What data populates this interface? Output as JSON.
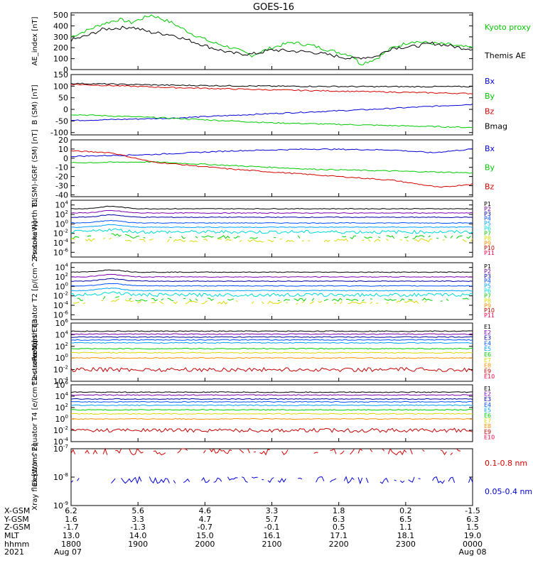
{
  "title": "GOES-16",
  "colors": {
    "black": "#000000",
    "green": "#00c800",
    "red": "#d40000",
    "blue": "#0000d8",
    "purple": "#7a00b0",
    "dark_blue": "#0000a0",
    "mid_blue": "#0050ff",
    "sky": "#00a0ff",
    "cyan": "#00d8d8",
    "lime": "#00d000",
    "yellow": "#d8d800",
    "orange": "#ff9000",
    "dark_red": "#c00000",
    "pink_red": "#ff0040"
  },
  "chart_data": [
    {
      "type": "line",
      "ylabel": "AE_index [nT]",
      "yticks": [
        "500",
        "400",
        "300",
        "200",
        "100",
        "0"
      ],
      "ylim": [
        0,
        520
      ],
      "series": [
        {
          "name": "Kyoto proxy AE",
          "color": "green",
          "points": [
            [
              0,
              300
            ],
            [
              0.04,
              360
            ],
            [
              0.08,
              420
            ],
            [
              0.12,
              460
            ],
            [
              0.15,
              430
            ],
            [
              0.2,
              500
            ],
            [
              0.25,
              430
            ],
            [
              0.3,
              330
            ],
            [
              0.35,
              250
            ],
            [
              0.4,
              200
            ],
            [
              0.45,
              130
            ],
            [
              0.5,
              200
            ],
            [
              0.55,
              250
            ],
            [
              0.6,
              220
            ],
            [
              0.65,
              170
            ],
            [
              0.7,
              130
            ],
            [
              0.72,
              50
            ],
            [
              0.76,
              100
            ],
            [
              0.8,
              200
            ],
            [
              0.85,
              260
            ],
            [
              0.9,
              240
            ],
            [
              0.94,
              230
            ],
            [
              0.97,
              210
            ],
            [
              1,
              200
            ]
          ]
        },
        {
          "name": "Themis AE",
          "color": "black",
          "points": [
            [
              0,
              270
            ],
            [
              0.04,
              310
            ],
            [
              0.08,
              370
            ],
            [
              0.12,
              380
            ],
            [
              0.15,
              390
            ],
            [
              0.2,
              340
            ],
            [
              0.25,
              320
            ],
            [
              0.3,
              260
            ],
            [
              0.35,
              200
            ],
            [
              0.4,
              150
            ],
            [
              0.45,
              140
            ],
            [
              0.5,
              180
            ],
            [
              0.55,
              170
            ],
            [
              0.6,
              160
            ],
            [
              0.65,
              130
            ],
            [
              0.7,
              100
            ],
            [
              0.72,
              110
            ],
            [
              0.76,
              120
            ],
            [
              0.8,
              200
            ],
            [
              0.85,
              210
            ],
            [
              0.9,
              240
            ],
            [
              0.94,
              220
            ],
            [
              0.97,
              200
            ],
            [
              1,
              190
            ]
          ]
        }
      ]
    },
    {
      "type": "line",
      "ylabel": "B (SM) [nT]",
      "yticks": [
        "150",
        "100",
        "50",
        "0",
        "-50",
        "-100"
      ],
      "ylim": [
        -110,
        150
      ],
      "series": [
        {
          "name": "Bx",
          "color": "blue",
          "points": [
            [
              0,
              -48
            ],
            [
              0.25,
              -38
            ],
            [
              0.5,
              -18
            ],
            [
              0.75,
              0
            ],
            [
              1,
              22
            ]
          ]
        },
        {
          "name": "By",
          "color": "green",
          "points": [
            [
              0,
              -22
            ],
            [
              0.25,
              -38
            ],
            [
              0.5,
              -58
            ],
            [
              0.75,
              -68
            ],
            [
              1,
              -78
            ]
          ]
        },
        {
          "name": "Bz",
          "color": "red",
          "points": [
            [
              0,
              108
            ],
            [
              0.25,
              94
            ],
            [
              0.5,
              84
            ],
            [
              0.75,
              76
            ],
            [
              1,
              68
            ]
          ]
        },
        {
          "name": "Bmag",
          "color": "black",
          "points": [
            [
              0,
              112
            ],
            [
              0.25,
              104
            ],
            [
              0.5,
              100
            ],
            [
              0.75,
              98
            ],
            [
              1,
              98
            ]
          ]
        }
      ]
    },
    {
      "type": "line",
      "ylabel": "B (SM)-IGRF (SM) [nT]",
      "yticks": [
        "20",
        "10",
        "0",
        "-10",
        "-20",
        "-30",
        "-40"
      ],
      "ylim": [
        -42,
        20
      ],
      "series": [
        {
          "name": "Bx",
          "color": "blue",
          "points": [
            [
              0,
              2
            ],
            [
              0.2,
              4
            ],
            [
              0.4,
              8
            ],
            [
              0.6,
              10
            ],
            [
              0.8,
              9
            ],
            [
              0.9,
              6
            ],
            [
              1,
              10
            ]
          ]
        },
        {
          "name": "By",
          "color": "green",
          "points": [
            [
              0,
              -5
            ],
            [
              0.2,
              -4
            ],
            [
              0.4,
              -8
            ],
            [
              0.6,
              -12
            ],
            [
              0.8,
              -14
            ],
            [
              1,
              -16
            ]
          ]
        },
        {
          "name": "Bz",
          "color": "red",
          "points": [
            [
              0,
              8
            ],
            [
              0.1,
              6
            ],
            [
              0.2,
              -4
            ],
            [
              0.3,
              -8
            ],
            [
              0.4,
              -12
            ],
            [
              0.6,
              -18
            ],
            [
              0.8,
              -24
            ],
            [
              0.92,
              -32
            ],
            [
              1,
              -28
            ]
          ]
        }
      ]
    },
    {
      "type": "line",
      "log": true,
      "ylabel": "Protons North T1",
      "yticks": [
        "10^4",
        "10^2",
        "10^0",
        "10^-2",
        "10^-4",
        "10^-6"
      ],
      "ylim_exp": [
        -7,
        5
      ],
      "series": [
        {
          "name": "P1",
          "color": "black",
          "level": 3.2
        },
        {
          "name": "P2",
          "color": "purple",
          "level": 2.3
        },
        {
          "name": "P3",
          "color": "dark_blue",
          "level": 1.4
        },
        {
          "name": "P4",
          "color": "mid_blue",
          "level": 0.2
        },
        {
          "name": "P5",
          "color": "sky",
          "level": -0.7
        },
        {
          "name": "P6",
          "color": "cyan",
          "level": -1.7
        },
        {
          "name": "P7",
          "color": "lime",
          "level": -2.8
        },
        {
          "name": "P8",
          "color": "yellow",
          "level": -3.5
        },
        {
          "name": "P9",
          "color": "orange",
          "level": null
        },
        {
          "name": "P10",
          "color": "dark_red",
          "level": null
        },
        {
          "name": "P11",
          "color": "pink_red",
          "level": null
        }
      ]
    },
    {
      "type": "line",
      "log": true,
      "ylabel": "Protons Equator T2 [p/(cm^2-s-sr-keV)]",
      "yticks": [
        "10^4",
        "10^2",
        "10^0",
        "10^-2",
        "10^-4",
        "10^-6"
      ],
      "ylim_exp": [
        -7,
        5
      ],
      "series": [
        {
          "name": "P1",
          "color": "black",
          "level": 3.0
        },
        {
          "name": "P2",
          "color": "purple",
          "level": 2.0
        },
        {
          "name": "P3",
          "color": "dark_blue",
          "level": 1.1
        },
        {
          "name": "P4",
          "color": "mid_blue",
          "level": 0.1
        },
        {
          "name": "P5",
          "color": "sky",
          "level": -0.9
        },
        {
          "name": "P6",
          "color": "cyan",
          "level": -1.8
        },
        {
          "name": "P7",
          "color": "lime",
          "level": -2.8
        },
        {
          "name": "P8",
          "color": "yellow",
          "level": -3.4
        },
        {
          "name": "P9",
          "color": "orange",
          "level": null
        },
        {
          "name": "P10",
          "color": "dark_red",
          "level": null
        },
        {
          "name": "P11",
          "color": "pink_red",
          "level": null
        }
      ]
    },
    {
      "type": "line",
      "log": true,
      "ylabel": "Electrons North T3",
      "yticks": [
        "10^6",
        "10^4",
        "10^2",
        "10^0",
        "10^-2",
        "10^-4"
      ],
      "ylim_exp": [
        -4,
        6
      ],
      "series": [
        {
          "name": "E1",
          "color": "black",
          "level": 4.6
        },
        {
          "name": "E2",
          "color": "purple",
          "level": 4.1
        },
        {
          "name": "E3",
          "color": "dark_blue",
          "level": 3.6
        },
        {
          "name": "E4",
          "color": "mid_blue",
          "level": 3.1
        },
        {
          "name": "E5",
          "color": "sky",
          "level": 2.6
        },
        {
          "name": "E6",
          "color": "lime",
          "level": 1.6
        },
        {
          "name": "E7",
          "color": "yellow",
          "level": 0.9
        },
        {
          "name": "E8",
          "color": "orange",
          "level": 0.0
        },
        {
          "name": "E9",
          "color": "dark_red",
          "level": -2.0
        },
        {
          "name": "E10",
          "color": "pink_red",
          "level": null
        }
      ]
    },
    {
      "type": "line",
      "log": true,
      "ylabel": "Electrons Equator T4 [e/(cm^2-s-sr-keV)]",
      "yticks": [
        "10^6",
        "10^4",
        "10^2",
        "10^0",
        "10^-2",
        "10^-4"
      ],
      "ylim_exp": [
        -4,
        6
      ],
      "series": [
        {
          "name": "E1",
          "color": "black",
          "level": 4.7
        },
        {
          "name": "E2",
          "color": "purple",
          "level": 4.2
        },
        {
          "name": "E3",
          "color": "dark_blue",
          "level": 3.5
        },
        {
          "name": "E4",
          "color": "mid_blue",
          "level": 3.0
        },
        {
          "name": "E5",
          "color": "sky",
          "level": 2.4
        },
        {
          "name": "E6",
          "color": "lime",
          "level": 1.6
        },
        {
          "name": "E7",
          "color": "yellow",
          "level": 0.9
        },
        {
          "name": "E8",
          "color": "orange",
          "level": 0.0
        },
        {
          "name": "E9",
          "color": "dark_red",
          "level": -2.0
        },
        {
          "name": "E10",
          "color": "pink_red",
          "level": null
        }
      ]
    },
    {
      "type": "line",
      "log": true,
      "ylabel": "Xray flux [W/m^2]",
      "yticks": [
        "10^-7",
        "10^-8",
        "10^-9"
      ],
      "ylim_exp": [
        -9,
        -7
      ],
      "series": [
        {
          "name": "0.1-0.8 nm",
          "color": "red",
          "level": -7.1
        },
        {
          "name": "0.05-0.4 nm",
          "color": "blue",
          "level": -8.1
        }
      ]
    }
  ],
  "ephemeris": {
    "row_labels": [
      "X-GSM",
      "Y-GSM",
      "Z-GSM",
      "MLT",
      "hhmm",
      "2021"
    ],
    "columns": [
      {
        "values": [
          "6.2",
          "1.6",
          "-1.7",
          "13.0",
          "1800",
          "Aug 07"
        ]
      },
      {
        "values": [
          "5.6",
          "3.3",
          "-1.3",
          "14.0",
          "1900",
          ""
        ]
      },
      {
        "values": [
          "4.6",
          "4.7",
          "-0.7",
          "15.0",
          "2000",
          ""
        ]
      },
      {
        "values": [
          "3.3",
          "5.7",
          "-0.1",
          "16.1",
          "2100",
          ""
        ]
      },
      {
        "values": [
          "1.8",
          "6.3",
          "0.5",
          "17.1",
          "2200",
          ""
        ]
      },
      {
        "values": [
          "0.2",
          "6.5",
          "1.1",
          "18.1",
          "2300",
          ""
        ]
      },
      {
        "values": [
          "-1.5",
          "6.3",
          "1.5",
          "19.0",
          "0000",
          "Aug 08"
        ]
      }
    ]
  }
}
